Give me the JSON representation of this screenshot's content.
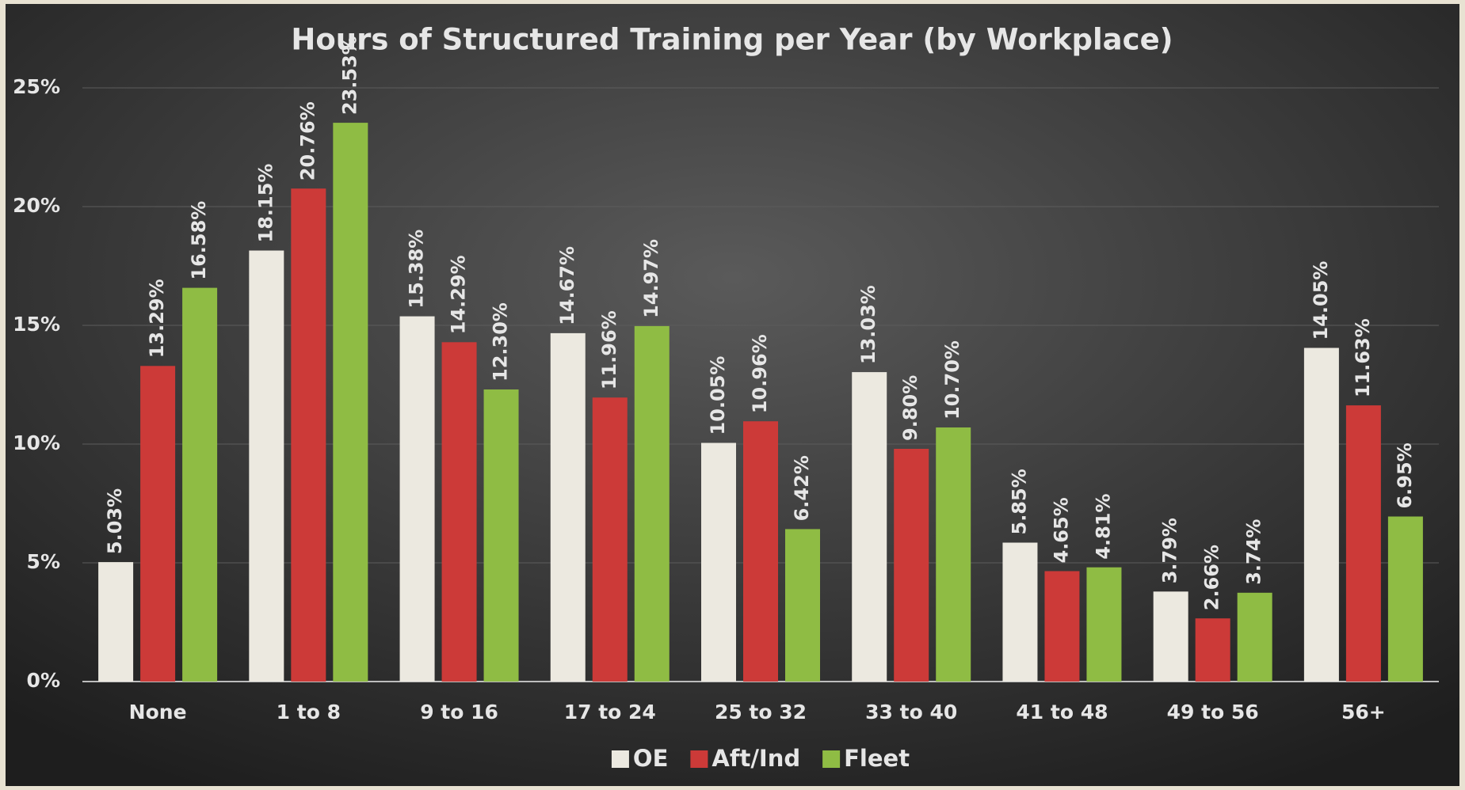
{
  "chart_data": {
    "type": "bar",
    "title": "Hours of Structured Training per Year (by Workplace)",
    "categories": [
      "None",
      "1 to 8",
      "9 to 16",
      "17 to 24",
      "25 to 32",
      "33 to 40",
      "41 to 48",
      "49 to 56",
      "56+"
    ],
    "series": [
      {
        "name": "OE",
        "color": "#ece9e0",
        "values": [
          5.03,
          18.15,
          15.38,
          14.67,
          10.05,
          13.03,
          5.85,
          3.79,
          14.05
        ],
        "value_labels": [
          "5.03%",
          "18.15%",
          "15.38%",
          "14.67%",
          "10.05%",
          "13.03%",
          "5.85%",
          "3.79%",
          "14.05%"
        ]
      },
      {
        "name": "Aft/Ind",
        "color": "#cc3a38",
        "values": [
          13.29,
          20.76,
          14.29,
          11.96,
          10.96,
          9.8,
          4.65,
          2.66,
          11.63
        ],
        "value_labels": [
          "13.29%",
          "20.76%",
          "14.29%",
          "11.96%",
          "10.96%",
          "9.80%",
          "4.65%",
          "2.66%",
          "11.63%"
        ]
      },
      {
        "name": "Fleet",
        "color": "#8fbc44",
        "values": [
          16.58,
          23.53,
          12.3,
          14.97,
          6.42,
          10.7,
          4.81,
          3.74,
          6.95
        ],
        "value_labels": [
          "16.58%",
          "23.53%",
          "12.30%",
          "14.97%",
          "6.42%",
          "10.70%",
          "4.81%",
          "3.74%",
          "6.95%"
        ]
      }
    ],
    "ylim": [
      0,
      25
    ],
    "yticks": [
      {
        "value": 0,
        "label": "0%"
      },
      {
        "value": 5,
        "label": "5%"
      },
      {
        "value": 10,
        "label": "10%"
      },
      {
        "value": 15,
        "label": "15%"
      },
      {
        "value": 20,
        "label": "20%"
      },
      {
        "value": 25,
        "label": "25%"
      }
    ],
    "grid": true,
    "legend": "bottom"
  }
}
